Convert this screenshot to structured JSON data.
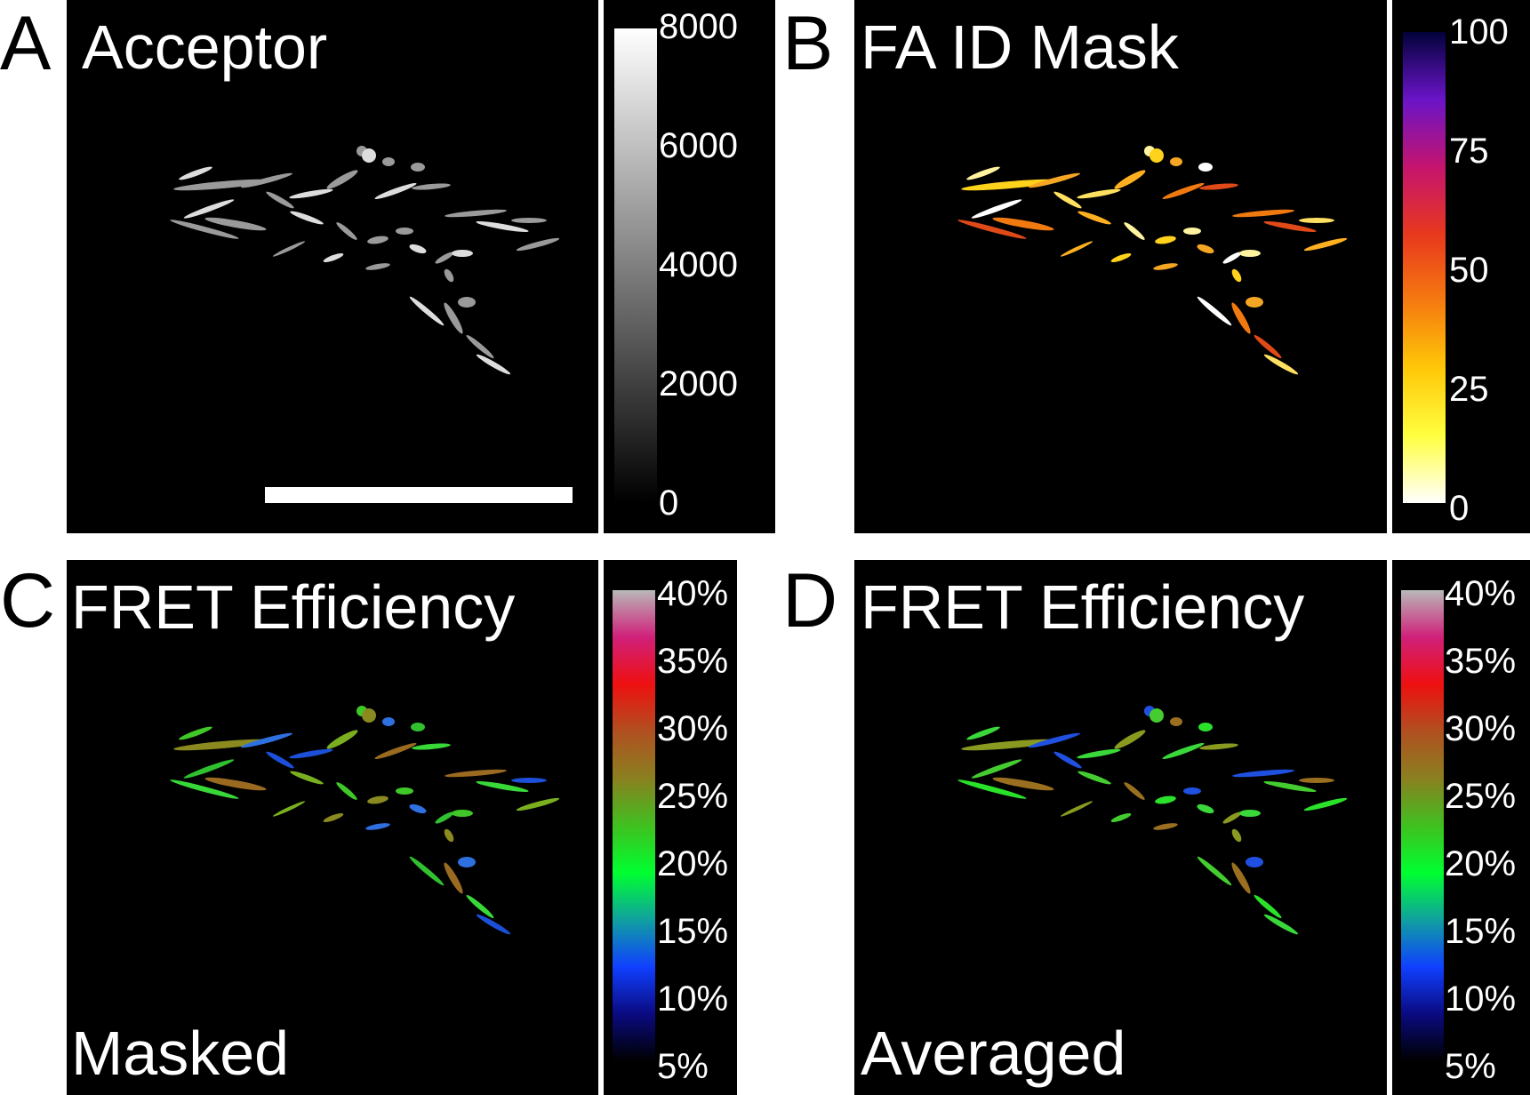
{
  "panels": {
    "a": {
      "letter": "A",
      "title": "Acceptor",
      "colorbar_ticks": [
        "8000",
        "6000",
        "4000",
        "2000",
        "0"
      ],
      "colorbar_colors": [
        "#ffffff",
        "#000000"
      ]
    },
    "b": {
      "letter": "B",
      "title": "FA ID Mask",
      "colorbar_ticks": [
        "100",
        "75",
        "50",
        "25",
        "0"
      ],
      "colorbar_colors": [
        "#02023a",
        "#6a14c8",
        "#c4146e",
        "#e8381e",
        "#f57a10",
        "#ffc808",
        "#ffff40",
        "#ffffff"
      ]
    },
    "c": {
      "letter": "C",
      "title": "FRET Efficiency",
      "subtitle": "Masked",
      "colorbar_ticks": [
        "40%",
        "35%",
        "30%",
        "25%",
        "20%",
        "15%",
        "10%",
        "5%"
      ],
      "colorbar_colors": [
        "#b8b8b8",
        "#d0207a",
        "#ee1010",
        "#b05020",
        "#8a8020",
        "#40c020",
        "#00ff30",
        "#10a0a0",
        "#1040ff",
        "#0a0a80",
        "#000000"
      ]
    },
    "d": {
      "letter": "D",
      "title": "FRET Efficiency",
      "subtitle": "Averaged",
      "colorbar_ticks": [
        "40%",
        "35%",
        "30%",
        "25%",
        "20%",
        "15%",
        "10%",
        "5%"
      ],
      "colorbar_colors": [
        "#b8b8b8",
        "#d0207a",
        "#ee1010",
        "#b05020",
        "#8a8020",
        "#40c020",
        "#00ff30",
        "#10a0a0",
        "#1040ff",
        "#0a0a80",
        "#000000"
      ]
    }
  }
}
